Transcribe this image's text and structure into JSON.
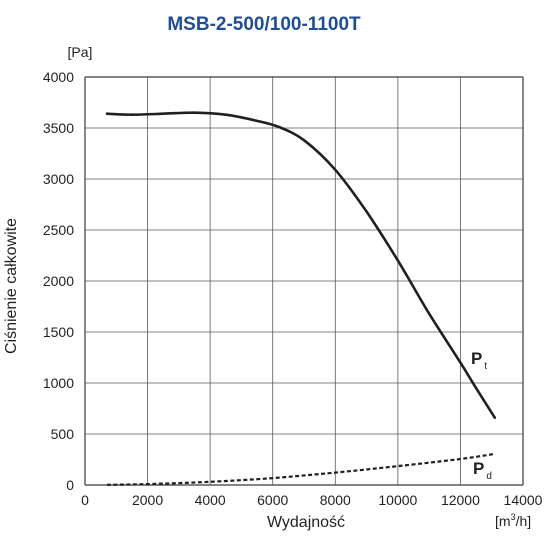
{
  "chart_data": {
    "type": "line",
    "title": "MSB-2-500/100-1100T",
    "xlabel": "Wydajność",
    "x_unit": {
      "prefix": "[m",
      "sup": "3",
      "suffix": "/h]"
    },
    "ylabel": "Ciśnienie całkowite",
    "y_unit": "[Pa]",
    "xlim": [
      0,
      14000
    ],
    "ylim": [
      0,
      4000
    ],
    "x_ticks": [
      "0",
      "2000",
      "4000",
      "6000",
      "8000",
      "10000",
      "12000",
      "14000"
    ],
    "y_ticks": [
      "0",
      "500",
      "1000",
      "1500",
      "2000",
      "2500",
      "3000",
      "3500",
      "4000"
    ],
    "grid": true,
    "series": [
      {
        "name": {
          "main": "P",
          "sub": "t"
        },
        "style": "solid",
        "color": "#231f20",
        "x": [
          700,
          1500,
          2500,
          3500,
          4500,
          5500,
          6200,
          7000,
          8000,
          9000,
          10000,
          11000,
          12000,
          12500,
          13100
        ],
        "y": [
          3640,
          3630,
          3640,
          3650,
          3630,
          3570,
          3510,
          3380,
          3090,
          2680,
          2200,
          1680,
          1200,
          950,
          660
        ]
      },
      {
        "name": {
          "main": "P",
          "sub": "d"
        },
        "style": "dashed",
        "color": "#231f20",
        "x": [
          700,
          2000,
          4000,
          6000,
          8000,
          10000,
          12000,
          13100
        ],
        "y": [
          2,
          9,
          31,
          68,
          122,
          185,
          255,
          305
        ]
      }
    ]
  }
}
